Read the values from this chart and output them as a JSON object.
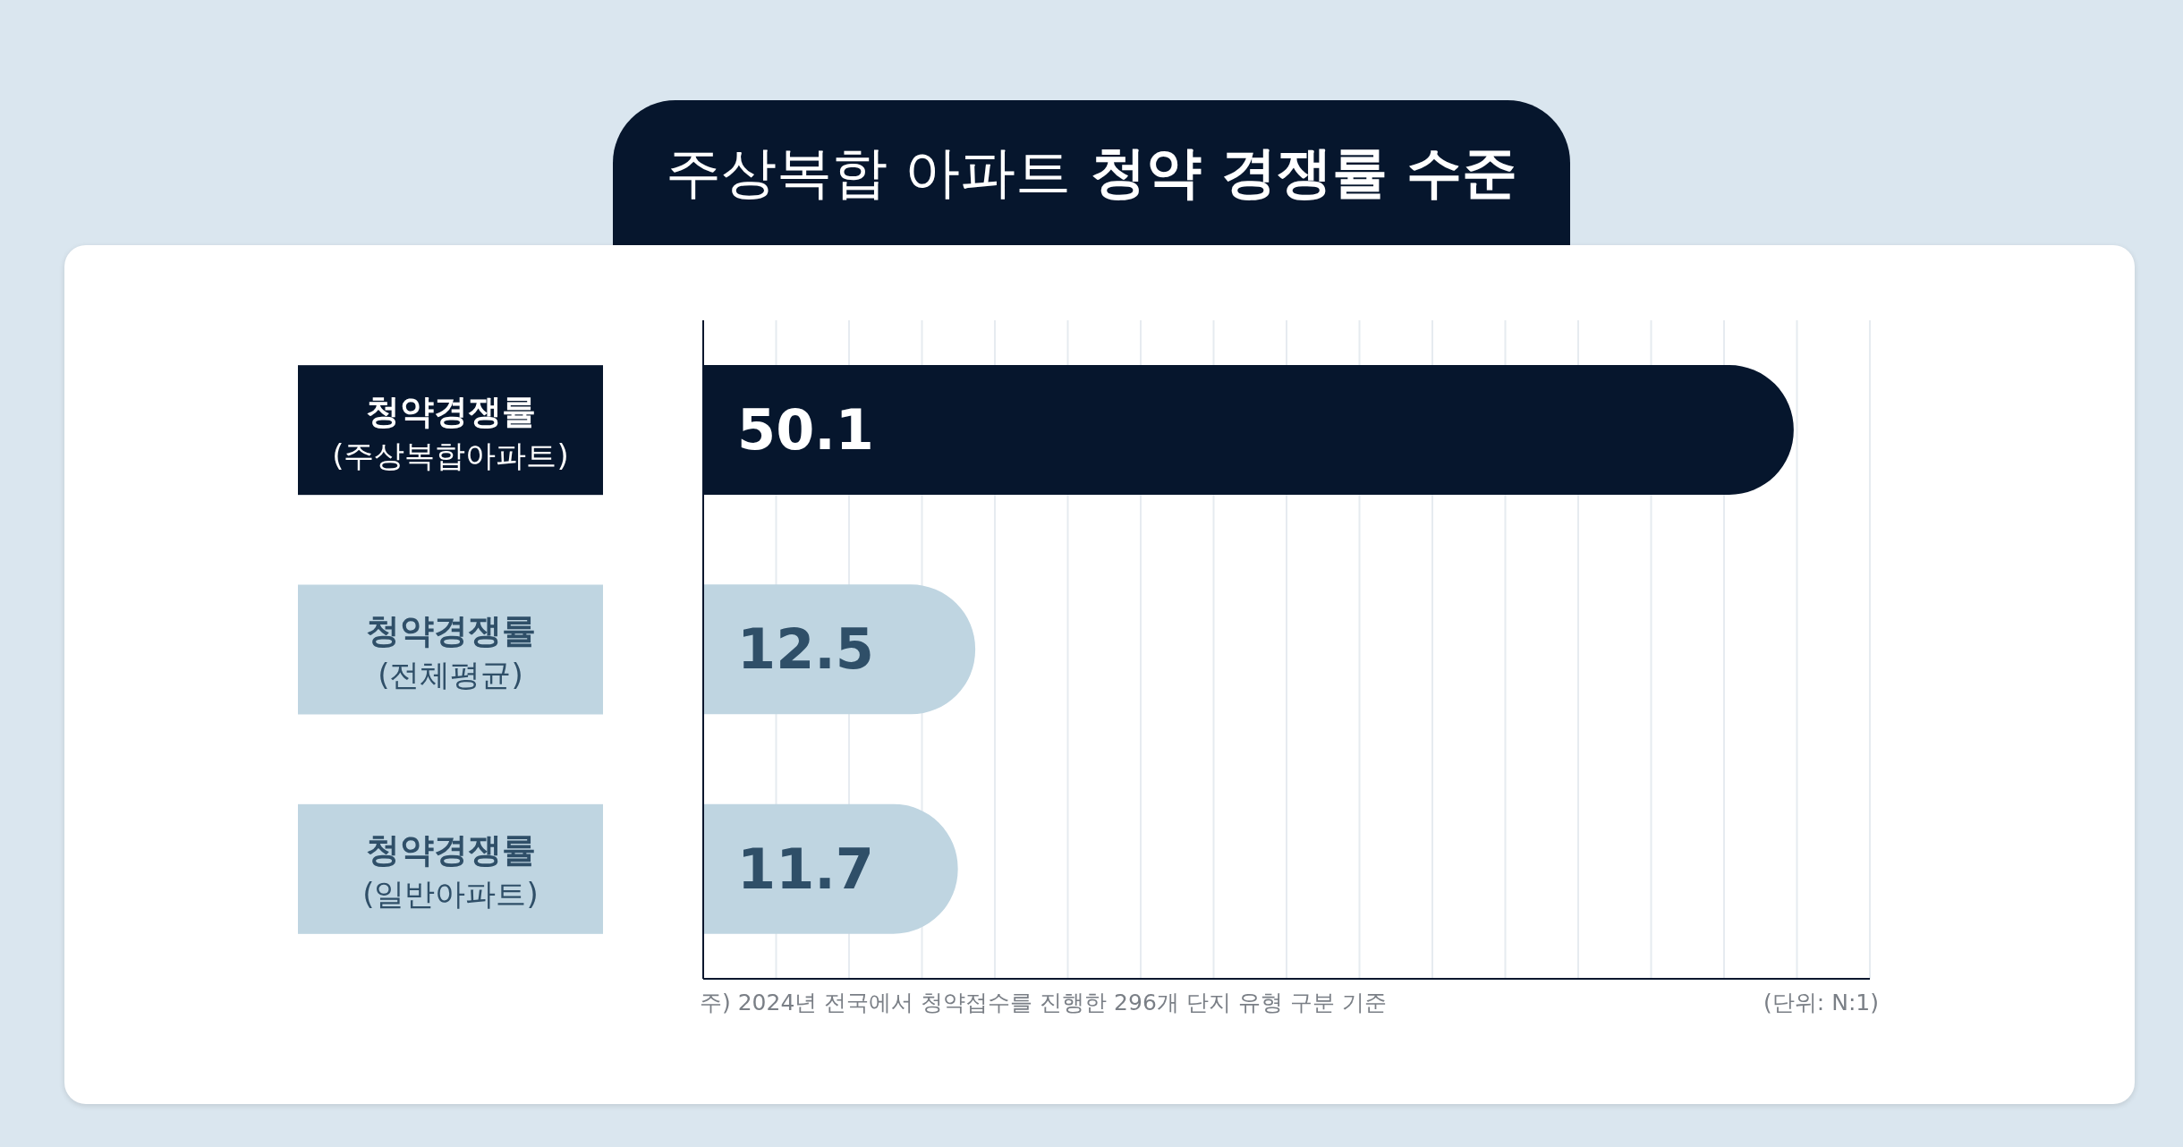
{
  "chart_data": {
    "type": "bar",
    "orientation": "horizontal",
    "title": "주상복합 아파트 청약 경쟁률 수준",
    "categories": [
      "청약경쟁률 (주상복합아파트)",
      "청약경쟁률 (전체평균)",
      "청약경쟁률 (일반아파트)"
    ],
    "values": [
      50.1,
      12.5,
      11.7
    ],
    "colors": [
      "#06162d",
      "#bfd5e1",
      "#bfd5e1"
    ],
    "data_labels": true,
    "xlim": [
      0,
      53.6
    ],
    "xticks": [
      {
        "value": 0,
        "label": null
      },
      {
        "value": 3.35,
        "label": null
      },
      {
        "value": 6.7,
        "label": null
      },
      {
        "value": 10.05,
        "label": null
      },
      {
        "value": 13.4,
        "label": null
      },
      {
        "value": 16.75,
        "label": null
      },
      {
        "value": 20.1,
        "label": null
      },
      {
        "value": 23.45,
        "label": null
      },
      {
        "value": 26.8,
        "label": null
      },
      {
        "value": 30.15,
        "label": null
      },
      {
        "value": 33.5,
        "label": null
      },
      {
        "value": 36.85,
        "label": null
      },
      {
        "value": 40.2,
        "label": null
      },
      {
        "value": 43.55,
        "label": null
      },
      {
        "value": 46.9,
        "label": null
      },
      {
        "value": 50.25,
        "label": null
      },
      {
        "value": 53.6,
        "label": null
      }
    ],
    "grid": "x",
    "tick_labels": "y",
    "annotations": [
      "주) 2024년 전국에서 청약접수를 진행한 296개 단지 유형 구분 기준",
      "(단위: N:1)"
    ]
  }
}
